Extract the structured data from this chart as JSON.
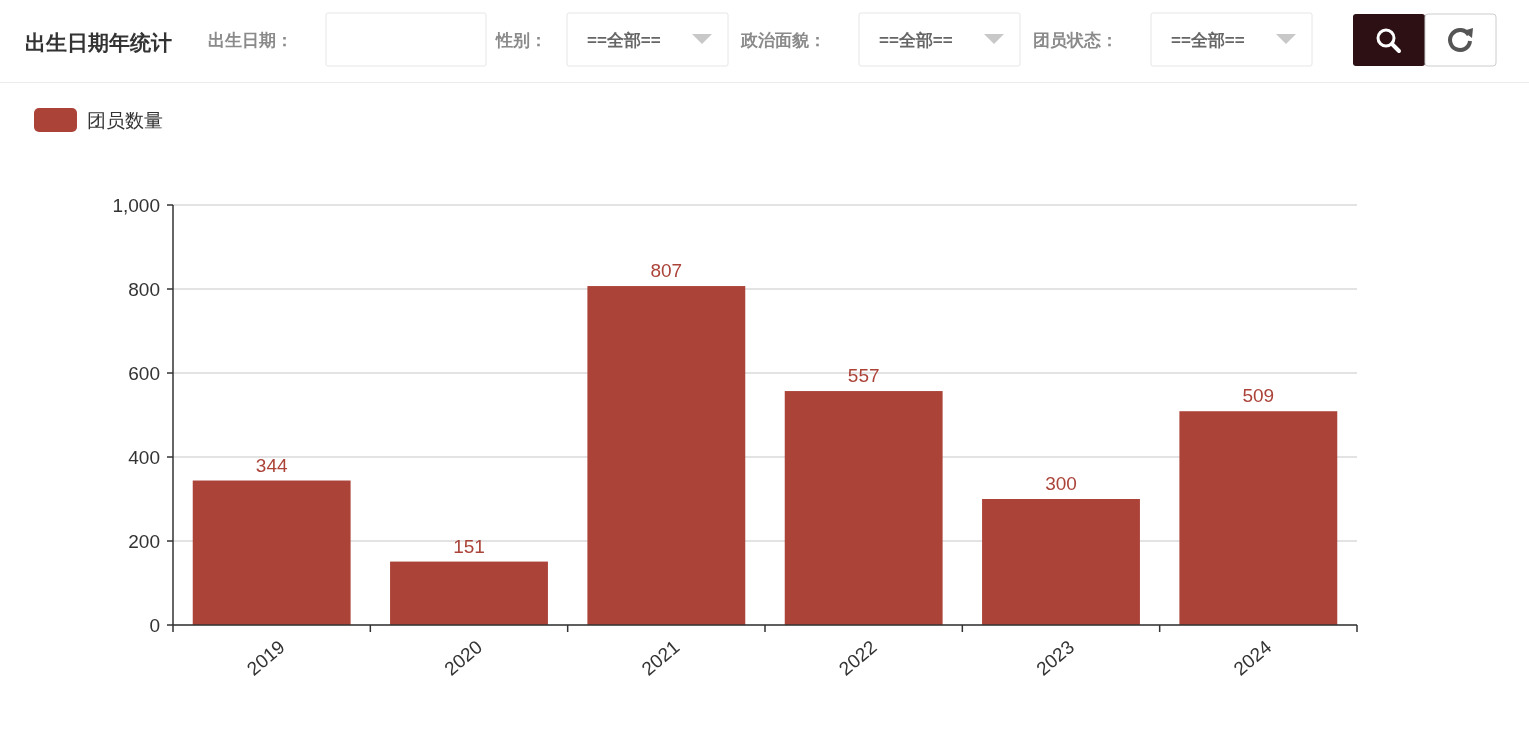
{
  "chart_data": {
    "type": "bar",
    "title": "出生日期年统计",
    "annotations": [
      "出生日期：",
      "性别：",
      "==全部==",
      "政治面貌：",
      "==全部==",
      "团员状态：",
      "==全部=="
    ],
    "categories": [
      "2019",
      "2020",
      "2021",
      "2022",
      "2023",
      "2024"
    ],
    "series": [
      {
        "name": "团员数量",
        "color": "#ab4339",
        "values": [
          344,
          151,
          807,
          557,
          300,
          509
        ]
      }
    ],
    "ylim": [
      0,
      1000
    ],
    "yticks": [
      0,
      200,
      400,
      600,
      800,
      {
        "value": 1000,
        "label": "1,000"
      }
    ],
    "grid": "y",
    "legend": "top left",
    "data_labels": true
  }
}
